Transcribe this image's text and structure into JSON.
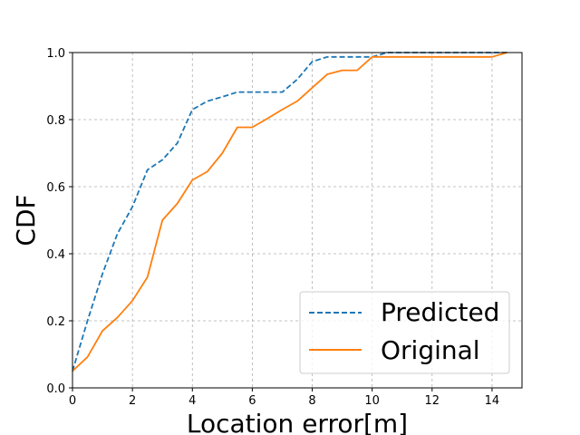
{
  "chart_data": {
    "type": "line",
    "title": "",
    "xlabel": "Location error[m]",
    "ylabel": "CDF",
    "xlim": [
      0,
      15
    ],
    "ylim": [
      0,
      1.0
    ],
    "xticks": [
      "0",
      "2",
      "4",
      "6",
      "8",
      "10",
      "12",
      "14"
    ],
    "yticks": [
      "0.0",
      "0.2",
      "0.4",
      "0.6",
      "0.8",
      "1.0"
    ],
    "grid": true,
    "legend_position": "lower-right",
    "series": [
      {
        "name": "Predicted",
        "color": "#1f77b4",
        "line_style": "dashed",
        "x": [
          0,
          0.5,
          1,
          1.5,
          2,
          2.5,
          3,
          3.5,
          4,
          4.5,
          5,
          5.5,
          6,
          6.5,
          7,
          7.5,
          8,
          8.5,
          9,
          9.5,
          10,
          10.5,
          11,
          12,
          13,
          14,
          14.5
        ],
        "y": [
          0.05,
          0.2,
          0.34,
          0.46,
          0.54,
          0.65,
          0.68,
          0.73,
          0.83,
          0.855,
          0.868,
          0.882,
          0.882,
          0.882,
          0.882,
          0.92,
          0.973,
          0.987,
          0.987,
          0.987,
          0.987,
          1.0,
          1.0,
          1.0,
          1.0,
          1.0,
          1.0
        ]
      },
      {
        "name": "Original",
        "color": "#ff7f0e",
        "line_style": "solid",
        "x": [
          0,
          0.5,
          1,
          1.5,
          2,
          2.5,
          3,
          3.5,
          4,
          4.5,
          5,
          5.5,
          6,
          6.5,
          7,
          7.5,
          8,
          8.5,
          9,
          9.5,
          10,
          10.5,
          11,
          12,
          13,
          14,
          14.5
        ],
        "y": [
          0.05,
          0.092,
          0.17,
          0.21,
          0.26,
          0.33,
          0.5,
          0.55,
          0.62,
          0.645,
          0.7,
          0.777,
          0.777,
          0.803,
          0.83,
          0.855,
          0.895,
          0.935,
          0.947,
          0.947,
          0.987,
          0.987,
          0.987,
          0.987,
          0.987,
          0.987,
          1.0
        ]
      }
    ]
  }
}
